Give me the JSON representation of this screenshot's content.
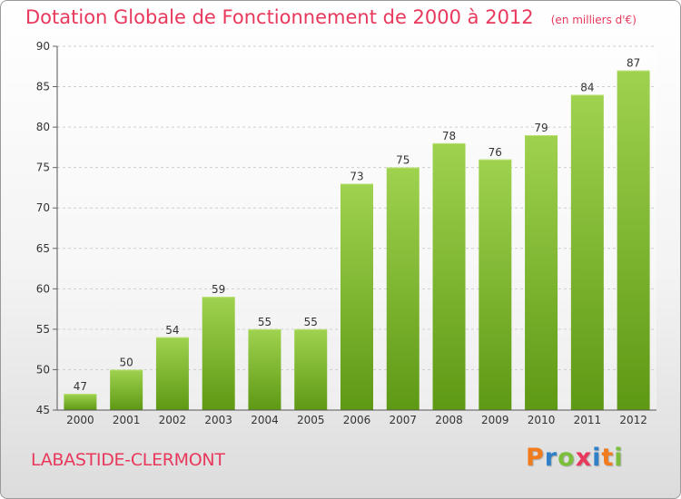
{
  "title": "Dotation Globale de Fonctionnement de 2000 à 2012",
  "unit": "(en milliers d'€)",
  "commune": "LABASTIDE-CLERMONT",
  "logo": {
    "letters": [
      "P",
      "r",
      "o",
      "x",
      "i",
      "t",
      "i"
    ],
    "colors": [
      "#f07c1e",
      "#2f80c8",
      "#7bbf3a",
      "#e8385c",
      "#2f80c8",
      "#f07c1e",
      "#7bbf3a"
    ]
  },
  "colors": {
    "bar_top": "#9fd24f",
    "bar_bottom": "#5e9914",
    "title": "#e8385c"
  },
  "chart_data": {
    "type": "bar",
    "title": "Dotation Globale de Fonctionnement de 2000 à 2012",
    "categories": [
      "2000",
      "2001",
      "2002",
      "2003",
      "2004",
      "2005",
      "2006",
      "2007",
      "2008",
      "2009",
      "2010",
      "2011",
      "2012"
    ],
    "values": [
      47,
      50,
      54,
      59,
      55,
      55,
      73,
      75,
      78,
      76,
      79,
      84,
      87
    ],
    "ylim": [
      45,
      90
    ],
    "yticks": [
      45,
      50,
      55,
      60,
      65,
      70,
      75,
      80,
      85,
      90
    ],
    "grid": true,
    "xlabel": "",
    "ylabel": ""
  }
}
